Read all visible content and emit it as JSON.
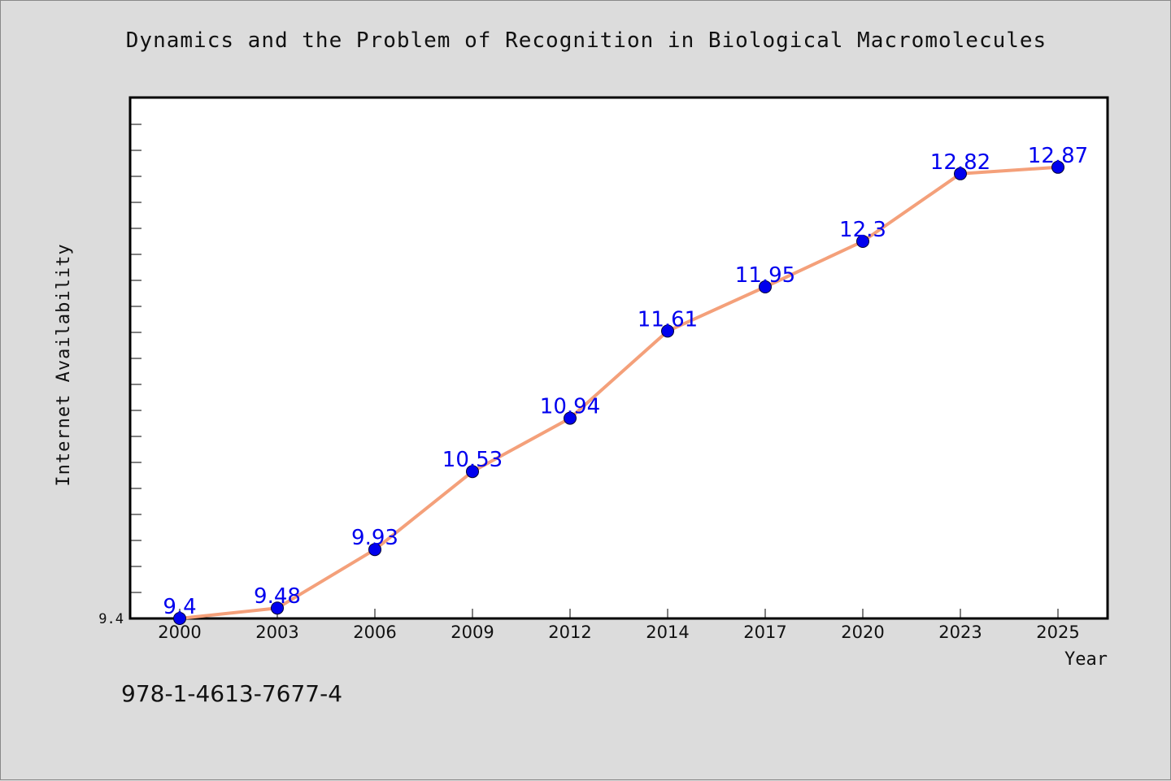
{
  "chart_data": {
    "type": "line",
    "title": "Dynamics and the Problem of Recognition in Biological Macromolecules",
    "xlabel": "Year",
    "ylabel": "Internet Availability",
    "categories": [
      "2000",
      "2003",
      "2006",
      "2009",
      "2012",
      "2014",
      "2017",
      "2020",
      "2023",
      "2025"
    ],
    "series": [
      {
        "values": [
          9.4,
          9.48,
          9.93,
          10.53,
          10.94,
          11.61,
          11.95,
          12.3,
          12.82,
          12.87
        ]
      }
    ],
    "data_labels": [
      "9.4",
      "9.48",
      "9.93",
      "10.53",
      "10.94",
      "11.61",
      "11.95",
      "12.3",
      "12.82",
      "12.87"
    ],
    "y_tick_labels": [
      "9.4"
    ],
    "ylim": [
      9.4,
      13.4
    ],
    "grid": false,
    "legend": "none",
    "colors": {
      "line": "#f4a07a",
      "marker": "#0000ee",
      "data_label": "#0000ee",
      "background": "#dcdcdc",
      "plot_background": "#ffffff"
    }
  },
  "footer": {
    "isbn": "978-1-4613-7677-4"
  }
}
